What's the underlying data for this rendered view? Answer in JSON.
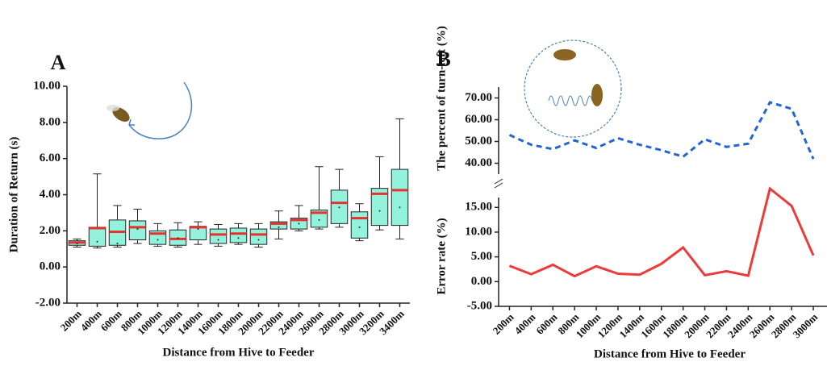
{
  "chart_data": [
    {
      "type": "box",
      "title": "A",
      "xlabel": "Distance from Hive to Feeder",
      "ylabel": "Duration of Return (s)",
      "categories": [
        "200m",
        "400m",
        "600m",
        "800m",
        "1000m",
        "1200m",
        "1400m",
        "1600m",
        "1800m",
        "2000m",
        "2200m",
        "2400m",
        "2600m",
        "2800m",
        "3000m",
        "3200m",
        "3400m"
      ],
      "boxes": [
        {
          "low": 1.1,
          "q1": 1.2,
          "median": 1.35,
          "q3": 1.45,
          "high": 1.55,
          "mean": 1.3
        },
        {
          "low": 1.05,
          "q1": 1.15,
          "median": 2.15,
          "q3": 2.2,
          "high": 5.15,
          "mean": 1.4
        },
        {
          "low": 1.1,
          "q1": 1.2,
          "median": 1.95,
          "q3": 2.6,
          "high": 3.4,
          "mean": 1.3
        },
        {
          "low": 1.3,
          "q1": 1.5,
          "median": 2.2,
          "q3": 2.55,
          "high": 3.2,
          "mean": 2.1
        },
        {
          "low": 1.15,
          "q1": 1.25,
          "median": 1.85,
          "q3": 2.0,
          "high": 2.4,
          "mean": 1.5
        },
        {
          "low": 1.1,
          "q1": 1.2,
          "median": 1.55,
          "q3": 2.05,
          "high": 2.45,
          "mean": 1.6
        },
        {
          "low": 1.25,
          "q1": 1.5,
          "median": 2.2,
          "q3": 2.25,
          "high": 2.5,
          "mean": 2.1
        },
        {
          "low": 1.15,
          "q1": 1.3,
          "median": 1.8,
          "q3": 2.1,
          "high": 2.35,
          "mean": 1.5
        },
        {
          "low": 1.25,
          "q1": 1.35,
          "median": 1.85,
          "q3": 2.15,
          "high": 2.4,
          "mean": 1.6
        },
        {
          "low": 1.1,
          "q1": 1.25,
          "median": 1.8,
          "q3": 2.1,
          "high": 2.4,
          "mean": 1.5
        },
        {
          "low": 1.55,
          "q1": 2.1,
          "median": 2.4,
          "q3": 2.5,
          "high": 3.1,
          "mean": 2.2
        },
        {
          "low": 2.0,
          "q1": 2.1,
          "median": 2.6,
          "q3": 2.7,
          "high": 3.4,
          "mean": 2.4
        },
        {
          "low": 2.1,
          "q1": 2.2,
          "median": 3.0,
          "q3": 3.15,
          "high": 5.55,
          "mean": 2.6
        },
        {
          "low": 2.2,
          "q1": 2.4,
          "median": 3.55,
          "q3": 4.25,
          "high": 5.4,
          "mean": 3.3
        },
        {
          "low": 1.45,
          "q1": 1.6,
          "median": 2.7,
          "q3": 3.05,
          "high": 3.5,
          "mean": 2.2
        },
        {
          "low": 2.05,
          "q1": 2.3,
          "median": 4.05,
          "q3": 4.35,
          "high": 6.1,
          "mean": 3.1
        },
        {
          "low": 1.55,
          "q1": 2.3,
          "median": 4.25,
          "q3": 5.4,
          "high": 8.2,
          "mean": 3.3
        }
      ],
      "box_color": "#93f2dc",
      "median_color": "#e8302f",
      "ylim": [
        -2,
        10
      ],
      "yticks": [
        {
          "value": -2,
          "label": "-2.00"
        },
        {
          "value": 0,
          "label": "0.00"
        },
        {
          "value": 2,
          "label": "2.00"
        },
        {
          "value": 4,
          "label": "4.00"
        },
        {
          "value": 6,
          "label": "6.00"
        },
        {
          "value": 8,
          "label": "8.00"
        },
        {
          "value": 10,
          "label": "10.00"
        }
      ]
    },
    {
      "type": "line",
      "title": "B",
      "xlabel": "Distance from Hive to Feeder",
      "ylabel": "The percent of turn-left (%)",
      "y2label": "Error rate (%)",
      "categories": [
        "200m",
        "400m",
        "600m",
        "800m",
        "1000m",
        "1200m",
        "1400m",
        "1600m",
        "1800m",
        "2000m",
        "2200m",
        "2400m",
        "2600m",
        "2800m",
        "3000m"
      ],
      "series": [
        {
          "color": "#2166d4",
          "dashed": true,
          "axis": "y",
          "values": [
            53,
            48.5,
            46.5,
            50.5,
            47,
            51.5,
            48.5,
            46,
            43,
            51,
            47.5,
            49,
            68,
            65,
            42
          ]
        },
        {
          "color": "#ec3b3b",
          "dashed": false,
          "axis": "y2",
          "values": [
            3.2,
            1.5,
            3.4,
            1.1,
            3.1,
            1.6,
            1.4,
            3.6,
            6.9,
            1.3,
            2.1,
            1.2,
            18.8,
            15.3,
            5.3
          ]
        }
      ],
      "ylim": [
        35,
        75
      ],
      "yticks": [
        {
          "value": 40,
          "label": "40.00"
        },
        {
          "value": 50,
          "label": "50.00"
        },
        {
          "value": 60,
          "label": "60.00"
        },
        {
          "value": 70,
          "label": "70.00"
        }
      ],
      "y2lim": [
        -5,
        17
      ],
      "y2ticks": [
        {
          "value": -5,
          "label": "-5.00"
        },
        {
          "value": 0,
          "label": "0.00"
        },
        {
          "value": 5,
          "label": "5.00"
        },
        {
          "value": 10,
          "label": "10.00"
        },
        {
          "value": 15,
          "label": "15.00"
        }
      ]
    }
  ]
}
